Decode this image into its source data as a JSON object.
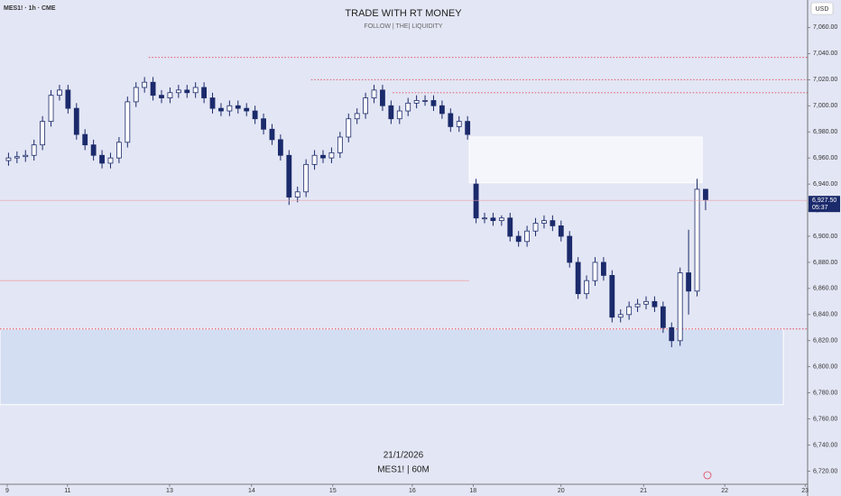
{
  "chart_data": {
    "type": "candlestick",
    "symbol": "MES1! · 1h · CME",
    "title": "TRADE WITH RT MONEY",
    "subtitle": "FOLLOW  |  THE|  LIQUIDITY",
    "currency": "USD",
    "date_label": "21/1/2026",
    "symbol_label": "MES1! | 60M",
    "up_color": "#ffffff",
    "down_color": "#1b2a6b",
    "background": "#e3e6f4",
    "x": [
      0,
      2,
      4,
      6,
      8,
      10,
      12,
      14,
      16,
      18,
      20,
      22,
      24,
      26,
      28,
      30,
      32,
      34,
      36,
      38,
      40,
      42,
      44,
      46,
      48,
      50,
      52,
      54,
      56,
      58,
      60,
      62,
      64,
      66,
      68,
      70,
      72,
      74,
      76,
      78,
      80,
      82,
      84,
      86,
      88,
      90,
      92,
      94,
      96,
      98,
      100,
      102,
      104,
      106,
      108,
      110,
      112,
      114,
      116,
      118,
      120,
      122,
      124,
      126,
      128,
      130,
      132,
      134,
      136,
      138,
      140,
      142,
      144,
      146,
      148,
      150,
      152,
      154,
      156,
      158,
      160,
      162,
      164
    ],
    "open": [
      6958,
      6960,
      6961,
      6962,
      6970,
      6988,
      7008,
      7012,
      6998,
      6978,
      6970,
      6962,
      6956,
      6960,
      6972,
      7003,
      7014,
      7018,
      7008,
      7006,
      7010,
      7012,
      7010,
      7014,
      7006,
      6998,
      6996,
      7000,
      6998,
      6996,
      6990,
      6982,
      6974,
      6962,
      6930,
      6934,
      6955,
      6962,
      6960,
      6964,
      6976,
      6990,
      6994,
      7006,
      7012,
      7000,
      6990,
      6996,
      7002,
      7004,
      7004,
      7000,
      6994,
      6984,
      6988,
      6940,
      6914,
      6914,
      6912,
      6914,
      6900,
      6896,
      6904,
      6910,
      6912,
      6908,
      6900,
      6880,
      6856,
      6866,
      6880,
      6870,
      6838,
      6840,
      6846,
      6848,
      6850,
      6846,
      6830,
      6820,
      6872,
      6858,
      6936
    ],
    "high": [
      6964,
      6965,
      6966,
      6974,
      6992,
      7012,
      7016,
      7016,
      7002,
      6982,
      6974,
      6966,
      6964,
      6976,
      7007,
      7018,
      7022,
      7022,
      7012,
      7014,
      7016,
      7016,
      7018,
      7018,
      7010,
      7002,
      7004,
      7004,
      7002,
      7000,
      6994,
      6986,
      6978,
      6966,
      6938,
      6959,
      6966,
      6966,
      6968,
      6980,
      6994,
      6998,
      7010,
      7016,
      7016,
      7004,
      7000,
      7006,
      7008,
      7008,
      7008,
      7004,
      6998,
      6992,
      6992,
      6944,
      6918,
      6918,
      6916,
      6918,
      6904,
      6908,
      6914,
      6916,
      6916,
      6912,
      6904,
      6884,
      6870,
      6884,
      6884,
      6874,
      6844,
      6850,
      6852,
      6854,
      6854,
      6850,
      6834,
      6876,
      6905,
      6944,
      6934
    ],
    "low": [
      6954,
      6956,
      6957,
      6958,
      6966,
      6984,
      7004,
      6994,
      6974,
      6966,
      6958,
      6952,
      6952,
      6956,
      6968,
      6999,
      7010,
      7004,
      7002,
      7002,
      7006,
      7006,
      7006,
      7002,
      6994,
      6992,
      6992,
      6994,
      6992,
      6986,
      6978,
      6970,
      6958,
      6924,
      6926,
      6930,
      6951,
      6956,
      6956,
      6960,
      6972,
      6986,
      6990,
      7002,
      6996,
      6986,
      6986,
      6992,
      6998,
      7000,
      6996,
      6990,
      6980,
      6980,
      6974,
      6910,
      6910,
      6908,
      6908,
      6896,
      6892,
      6892,
      6900,
      6906,
      6904,
      6896,
      6876,
      6852,
      6852,
      6862,
      6866,
      6834,
      6834,
      6836,
      6842,
      6844,
      6842,
      6826,
      6815,
      6816,
      6840,
      6854,
      6920
    ],
    "close": [
      6960,
      6961,
      6962,
      6970,
      6988,
      7008,
      7012,
      6998,
      6978,
      6970,
      6962,
      6956,
      6960,
      6972,
      7003,
      7014,
      7018,
      7008,
      7006,
      7010,
      7012,
      7010,
      7014,
      7006,
      6998,
      6996,
      7000,
      6998,
      6996,
      6990,
      6982,
      6974,
      6962,
      6930,
      6934,
      6955,
      6962,
      6960,
      6964,
      6976,
      6990,
      6994,
      7006,
      7012,
      7000,
      6990,
      6996,
      7002,
      7004,
      7004,
      7000,
      6994,
      6984,
      6988,
      6978,
      6914,
      6914,
      6912,
      6914,
      6900,
      6896,
      6904,
      6910,
      6912,
      6908,
      6900,
      6880,
      6856,
      6866,
      6880,
      6870,
      6838,
      6840,
      6846,
      6848,
      6850,
      6846,
      6830,
      6820,
      6872,
      6858,
      6936,
      6928
    ],
    "xlim": [
      -2,
      188
    ],
    "xticks": [
      {
        "value": -0.3,
        "label": "9"
      },
      {
        "value": 13.9,
        "label": "11"
      },
      {
        "value": 37.9,
        "label": "13"
      },
      {
        "value": 57.2,
        "label": "14"
      },
      {
        "value": 76.3,
        "label": "15"
      },
      {
        "value": 95,
        "label": "16"
      },
      {
        "value": 109.3,
        "label": "18"
      },
      {
        "value": 130,
        "label": "20"
      },
      {
        "value": 149.4,
        "label": "21"
      },
      {
        "value": 168.5,
        "label": "22"
      },
      {
        "value": 187.4,
        "label": "23"
      }
    ],
    "ylim": [
      6710,
      7081
    ],
    "yticks": [
      {
        "value": 6720,
        "label": "6,720.00"
      },
      {
        "value": 6740,
        "label": "6,740.00"
      },
      {
        "value": 6760,
        "label": "6,760.00"
      },
      {
        "value": 6780,
        "label": "6,780.00"
      },
      {
        "value": 6800,
        "label": "6,800.00"
      },
      {
        "value": 6820,
        "label": "6,820.00"
      },
      {
        "value": 6840,
        "label": "6,840.00"
      },
      {
        "value": 6860,
        "label": "6,860.00"
      },
      {
        "value": 6880,
        "label": "6,880.00"
      },
      {
        "value": 6900,
        "label": "6,900.00"
      },
      {
        "value": 6920,
        "label": "6,920.00"
      },
      {
        "value": 6940,
        "label": "6,940.00"
      },
      {
        "value": 6960,
        "label": "6,960.00"
      },
      {
        "value": 6980,
        "label": "6,980.00"
      },
      {
        "value": 7000,
        "label": "7,000.00"
      },
      {
        "value": 7020,
        "label": "7,020.00"
      },
      {
        "value": 7040,
        "label": "7,040.00"
      },
      {
        "value": 7060,
        "label": "7,060.00"
      }
    ],
    "zones": [
      {
        "x": [
          108.4,
          163.2
        ],
        "y": [
          6941,
          6976
        ],
        "color": "#f5f6fc"
      },
      {
        "x": [
          -2,
          182.3
        ],
        "y": [
          6771,
          6829
        ],
        "color": "#d4def2"
      }
    ],
    "levels": [
      {
        "value": 7037,
        "x": [
          33,
          188
        ],
        "style": "dotted",
        "color": "#e0475a"
      },
      {
        "value": 7020,
        "x": [
          71.2,
          188
        ],
        "style": "dotted",
        "color": "#e0475a"
      },
      {
        "value": 7010,
        "x": [
          90.4,
          188
        ],
        "style": "dotted",
        "color": "#e0475a"
      },
      {
        "value": 6866,
        "x": [
          -2,
          108.4
        ],
        "style": "solid",
        "color": "#f2a7b0"
      },
      {
        "value": 6829,
        "x": [
          -2,
          188
        ],
        "style": "dotted",
        "color": "#e0475a"
      }
    ],
    "last_price": 6927.5,
    "last_price_label": "6,927.50",
    "countdown": "05:37"
  }
}
